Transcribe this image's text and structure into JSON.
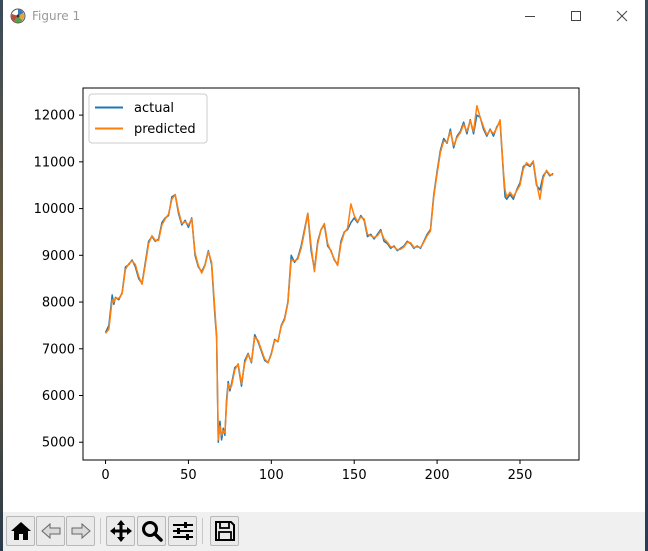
{
  "window": {
    "title": "Figure 1"
  },
  "toolbar": {
    "buttons": [
      {
        "name": "home-icon"
      },
      {
        "name": "back-icon"
      },
      {
        "name": "forward-icon"
      },
      {
        "name": "pan-icon"
      },
      {
        "name": "zoom-icon"
      },
      {
        "name": "configure-subplots-icon"
      },
      {
        "name": "save-icon"
      }
    ]
  },
  "chart_data": {
    "type": "line",
    "title": "",
    "xlabel": "",
    "ylabel": "",
    "xlim": [
      -13.6,
      285.6
    ],
    "ylim": [
      4620,
      12580
    ],
    "xticks": [
      0,
      50,
      100,
      150,
      200,
      250
    ],
    "yticks": [
      5000,
      6000,
      7000,
      8000,
      9000,
      10000,
      11000,
      12000
    ],
    "grid": false,
    "legend_position": "top-left",
    "series": [
      {
        "name": "actual",
        "color": "#1f77b4",
        "x": [
          0,
          2,
          4,
          5,
          6,
          8,
          10,
          12,
          14,
          16,
          18,
          20,
          22,
          24,
          26,
          28,
          30,
          32,
          34,
          36,
          38,
          40,
          42,
          44,
          46,
          48,
          50,
          52,
          54,
          56,
          58,
          60,
          62,
          64,
          66,
          67,
          68,
          69,
          70,
          71,
          72,
          73,
          74,
          75,
          76,
          78,
          80,
          82,
          84,
          86,
          88,
          90,
          92,
          94,
          96,
          98,
          100,
          102,
          104,
          106,
          108,
          110,
          112,
          114,
          116,
          118,
          120,
          122,
          124,
          126,
          128,
          130,
          132,
          134,
          136,
          138,
          140,
          142,
          144,
          146,
          148,
          150,
          152,
          154,
          156,
          158,
          160,
          162,
          164,
          166,
          168,
          170,
          172,
          174,
          176,
          178,
          180,
          182,
          184,
          186,
          188,
          190,
          192,
          194,
          196,
          198,
          200,
          202,
          204,
          206,
          208,
          210,
          212,
          214,
          216,
          218,
          220,
          222,
          224,
          226,
          228,
          230,
          232,
          234,
          236,
          238,
          240,
          241,
          242,
          244,
          246,
          248,
          250,
          252,
          254,
          256,
          258,
          260,
          262,
          264,
          266,
          268,
          270
        ],
        "y": [
          7350,
          7500,
          8150,
          7950,
          8100,
          8050,
          8200,
          8750,
          8800,
          8900,
          8750,
          8500,
          8400,
          8850,
          9300,
          9400,
          9300,
          9350,
          9700,
          9800,
          9850,
          10250,
          10300,
          9900,
          9650,
          9750,
          9600,
          9800,
          9000,
          8750,
          8650,
          8800,
          9100,
          8800,
          7700,
          7250,
          5000,
          5450,
          5050,
          5300,
          5150,
          5900,
          6300,
          6100,
          6250,
          6600,
          6650,
          6200,
          6750,
          6900,
          6700,
          7300,
          7150,
          6950,
          6750,
          6700,
          6900,
          7200,
          7150,
          7500,
          7650,
          8000,
          9000,
          8850,
          8950,
          9200,
          9550,
          9900,
          9100,
          8700,
          9300,
          9550,
          9650,
          9200,
          9100,
          8900,
          8800,
          9300,
          9500,
          9550,
          9700,
          9800,
          9700,
          9850,
          9750,
          9400,
          9450,
          9350,
          9450,
          9550,
          9300,
          9250,
          9150,
          9200,
          9100,
          9150,
          9200,
          9300,
          9250,
          9150,
          9200,
          9150,
          9300,
          9450,
          9550,
          10300,
          10800,
          11250,
          11500,
          11400,
          11700,
          11300,
          11550,
          11650,
          11850,
          11600,
          11900,
          11600,
          12000,
          11950,
          11700,
          11550,
          11700,
          11550,
          11750,
          11850,
          10750,
          10250,
          10200,
          10300,
          10200,
          10400,
          10550,
          10900,
          10950,
          10900,
          11000,
          10500,
          10400,
          10700,
          10800,
          10700,
          10750
        ]
      },
      {
        "name": "predicted",
        "color": "#ff7f0e",
        "x": [
          0,
          2,
          4,
          5,
          6,
          8,
          10,
          12,
          14,
          16,
          18,
          20,
          22,
          24,
          26,
          28,
          30,
          32,
          34,
          36,
          38,
          40,
          42,
          44,
          46,
          48,
          50,
          52,
          54,
          56,
          58,
          60,
          62,
          64,
          66,
          67,
          68,
          69,
          70,
          71,
          72,
          73,
          74,
          75,
          76,
          78,
          80,
          82,
          84,
          86,
          88,
          90,
          92,
          94,
          96,
          98,
          100,
          102,
          104,
          106,
          108,
          110,
          112,
          114,
          116,
          118,
          120,
          122,
          124,
          126,
          128,
          130,
          132,
          134,
          136,
          138,
          140,
          142,
          144,
          146,
          148,
          150,
          152,
          154,
          156,
          158,
          160,
          162,
          164,
          166,
          168,
          170,
          172,
          174,
          176,
          178,
          180,
          182,
          184,
          186,
          188,
          190,
          192,
          194,
          196,
          198,
          200,
          202,
          204,
          206,
          208,
          210,
          212,
          214,
          216,
          218,
          220,
          222,
          224,
          226,
          228,
          230,
          232,
          234,
          236,
          238,
          240,
          241,
          242,
          244,
          246,
          248,
          250,
          252,
          254,
          256,
          258,
          260,
          262,
          264,
          266,
          268,
          270
        ],
        "y": [
          7330,
          7420,
          8050,
          8000,
          8080,
          8080,
          8180,
          8700,
          8820,
          8880,
          8800,
          8550,
          8380,
          8800,
          9250,
          9420,
          9320,
          9320,
          9650,
          9780,
          9880,
          10200,
          10300,
          9950,
          9680,
          9720,
          9650,
          9780,
          9050,
          8780,
          8620,
          8780,
          9080,
          8850,
          7800,
          7300,
          5050,
          5350,
          5150,
          5250,
          5200,
          5800,
          6250,
          6150,
          6200,
          6550,
          6680,
          6250,
          6700,
          6880,
          6720,
          7250,
          7180,
          6980,
          6780,
          6700,
          6880,
          7180,
          7160,
          7480,
          7620,
          7980,
          8900,
          8880,
          8920,
          9150,
          9500,
          9900,
          9200,
          8650,
          9250,
          9550,
          9680,
          9250,
          9080,
          8920,
          8780,
          9250,
          9480,
          9580,
          10100,
          9850,
          9720,
          9820,
          9780,
          9450,
          9420,
          9380,
          9420,
          9520,
          9350,
          9280,
          9180,
          9180,
          9120,
          9130,
          9180,
          9280,
          9270,
          9170,
          9180,
          9170,
          9280,
          9420,
          9520,
          10250,
          10750,
          11200,
          11450,
          11420,
          11650,
          11350,
          11520,
          11620,
          11800,
          11650,
          11880,
          11650,
          12200,
          11950,
          11750,
          11580,
          11680,
          11600,
          11720,
          11900,
          10800,
          10400,
          10250,
          10350,
          10250,
          10380,
          10500,
          10850,
          10980,
          10920,
          11020,
          10550,
          10200,
          10650,
          10820,
          10720,
          10720
        ]
      }
    ]
  }
}
